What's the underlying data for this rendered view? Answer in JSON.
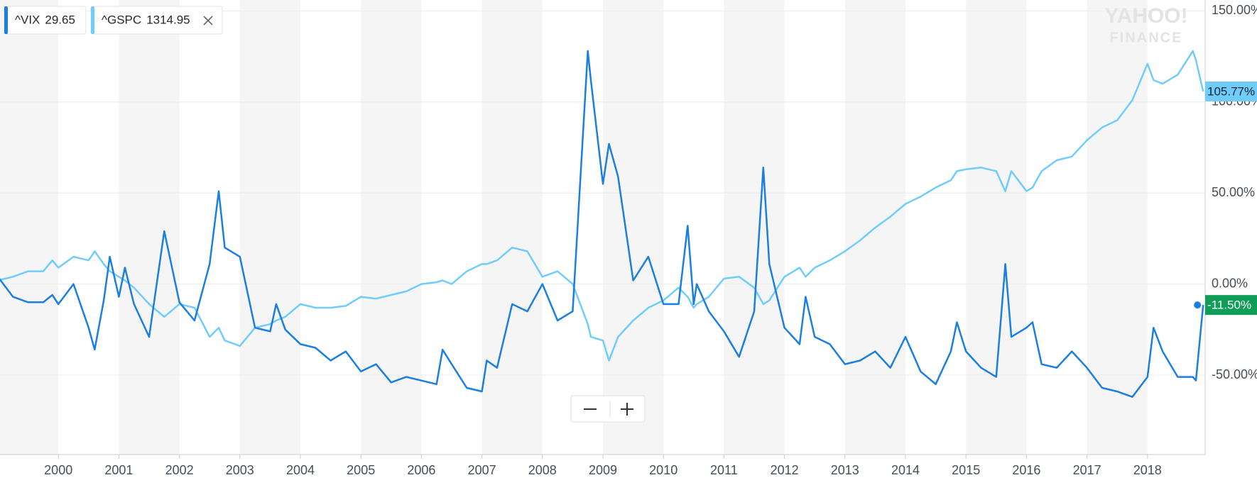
{
  "chart_data": {
    "type": "line",
    "x": [
      1999.0,
      1999.25,
      1999.5,
      1999.75,
      1999.9,
      2000.0,
      2000.25,
      2000.5,
      2000.6,
      2000.75,
      2000.85,
      2001.0,
      2001.1,
      2001.25,
      2001.5,
      2001.75,
      2002.0,
      2002.25,
      2002.5,
      2002.65,
      2002.75,
      2003.0,
      2003.25,
      2003.5,
      2003.6,
      2003.75,
      2004.0,
      2004.25,
      2004.5,
      2004.75,
      2005.0,
      2005.25,
      2005.5,
      2005.75,
      2006.0,
      2006.25,
      2006.35,
      2006.5,
      2006.75,
      2007.0,
      2007.08,
      2007.25,
      2007.5,
      2007.75,
      2008.0,
      2008.25,
      2008.5,
      2008.75,
      2008.8,
      2009.0,
      2009.1,
      2009.25,
      2009.5,
      2009.75,
      2010.0,
      2010.25,
      2010.4,
      2010.5,
      2010.55,
      2010.75,
      2011.0,
      2011.25,
      2011.5,
      2011.65,
      2011.75,
      2012.0,
      2012.25,
      2012.35,
      2012.5,
      2012.75,
      2013.0,
      2013.25,
      2013.5,
      2013.75,
      2014.0,
      2014.25,
      2014.5,
      2014.75,
      2014.85,
      2015.0,
      2015.25,
      2015.5,
      2015.65,
      2015.75,
      2016.0,
      2016.1,
      2016.25,
      2016.5,
      2016.75,
      2017.0,
      2017.25,
      2017.5,
      2017.75,
      2018.0,
      2018.1,
      2018.25,
      2018.5,
      2018.75,
      2018.8,
      2018.92
    ],
    "series": [
      {
        "name": "^VIX",
        "price": "29.65",
        "color": "#1a7fe0",
        "values": [
          4,
          -7,
          -10,
          -10,
          -6,
          -11,
          0,
          -24,
          -36,
          -9,
          15,
          -7,
          9,
          -11,
          -29,
          29,
          -10,
          -20,
          11,
          51,
          20,
          15,
          -24,
          -26,
          -11,
          -25,
          -33,
          -35,
          -42,
          -37,
          -48,
          -44,
          -54,
          -51,
          -53,
          -55,
          -36,
          -44,
          -57,
          -59,
          -42,
          -46,
          -11,
          -15,
          0,
          -20,
          -15,
          128,
          112,
          55,
          77,
          59,
          2,
          15,
          -11,
          -11,
          32,
          -11,
          0,
          -15,
          -26,
          -40,
          -15,
          64,
          11,
          -24,
          -33,
          -7,
          -29,
          -33,
          -44,
          -42,
          -37,
          -46,
          -29,
          -48,
          -55,
          -37,
          -21,
          -37,
          -46,
          -51,
          11,
          -29,
          -24,
          -21,
          -44,
          -46,
          -37,
          -46,
          -57,
          -59,
          -62,
          -51,
          -24,
          -37,
          -51,
          -51,
          -53,
          -11.5
        ],
        "end_label": "-11.50%",
        "end_color": "#0f9d58"
      },
      {
        "name": "^GSPC",
        "price": "1314.95",
        "color": "#70cdfb",
        "values": [
          2,
          4,
          7,
          7,
          13,
          9,
          15,
          13,
          18,
          11,
          7,
          4,
          2,
          -2,
          -11,
          -18,
          -11,
          -13,
          -29,
          -24,
          -31,
          -34,
          -24,
          -22,
          -20,
          -18,
          -11,
          -13,
          -13,
          -12,
          -7,
          -8,
          -6,
          -4,
          0,
          1,
          2,
          0,
          7,
          11,
          11,
          13,
          20,
          18,
          4,
          7,
          0,
          -22,
          -29,
          -31,
          -42,
          -29,
          -20,
          -13,
          -9,
          -2,
          -7,
          -13,
          -11,
          -7,
          3,
          4,
          -2,
          -11,
          -9,
          4,
          9,
          4,
          9,
          13,
          18,
          24,
          31,
          37,
          44,
          48,
          53,
          57,
          62,
          63,
          64,
          62,
          51,
          62,
          51,
          53,
          62,
          68,
          70,
          79,
          86,
          90,
          101,
          121,
          112,
          110,
          115,
          128,
          123,
          105.77
        ],
        "end_label": "105.77%",
        "end_color": "#70cdfb"
      }
    ],
    "xlim": [
      1999,
      2019
    ],
    "xticks": [
      2000,
      2001,
      2002,
      2003,
      2004,
      2005,
      2006,
      2007,
      2008,
      2009,
      2010,
      2011,
      2012,
      2013,
      2014,
      2015,
      2016,
      2017,
      2018
    ],
    "ylim": [
      -94,
      156
    ],
    "yticks": [
      {
        "value": 150,
        "label": "150.00%"
      },
      {
        "value": 100,
        "label": "100.00%"
      },
      {
        "value": 50,
        "label": "50.00%"
      },
      {
        "value": 0,
        "label": "0.00%"
      },
      {
        "value": -50,
        "label": "-50.00%"
      }
    ],
    "grid": true,
    "watermark": [
      "YAHOO!",
      "FINANCE"
    ]
  }
}
